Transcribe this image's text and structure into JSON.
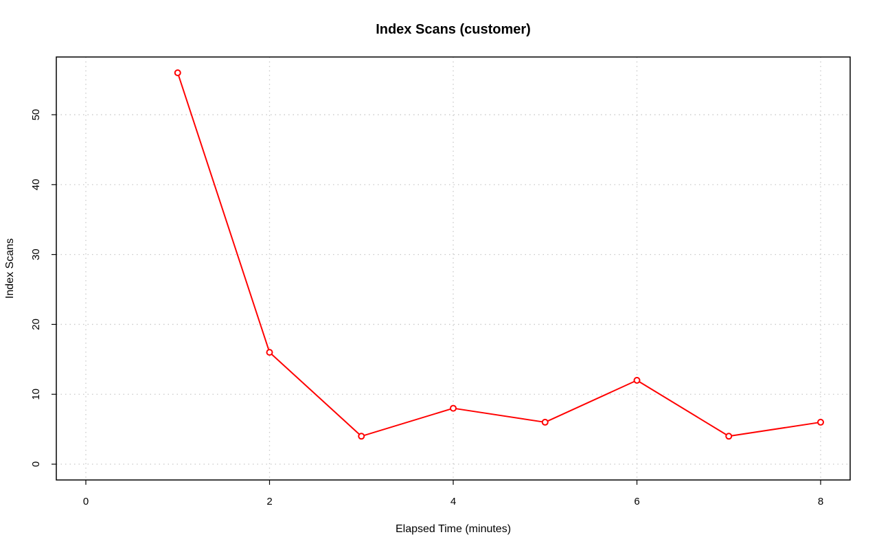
{
  "chart_data": {
    "type": "line",
    "title": "Index Scans (customer)",
    "xlabel": "Elapsed Time (minutes)",
    "ylabel": "Index Scans",
    "xlim": [
      0,
      8
    ],
    "ylim": [
      0,
      56
    ],
    "xticks": [
      0,
      2,
      4,
      6,
      8
    ],
    "yticks": [
      0,
      10,
      20,
      30,
      40,
      50
    ],
    "grid": true,
    "series": [
      {
        "color": "#ff0000",
        "marker": "open-circle",
        "x": [
          1,
          2,
          3,
          4,
          5,
          6,
          7,
          8
        ],
        "y": [
          56,
          16,
          4,
          8,
          6,
          12,
          4,
          6
        ]
      }
    ]
  }
}
